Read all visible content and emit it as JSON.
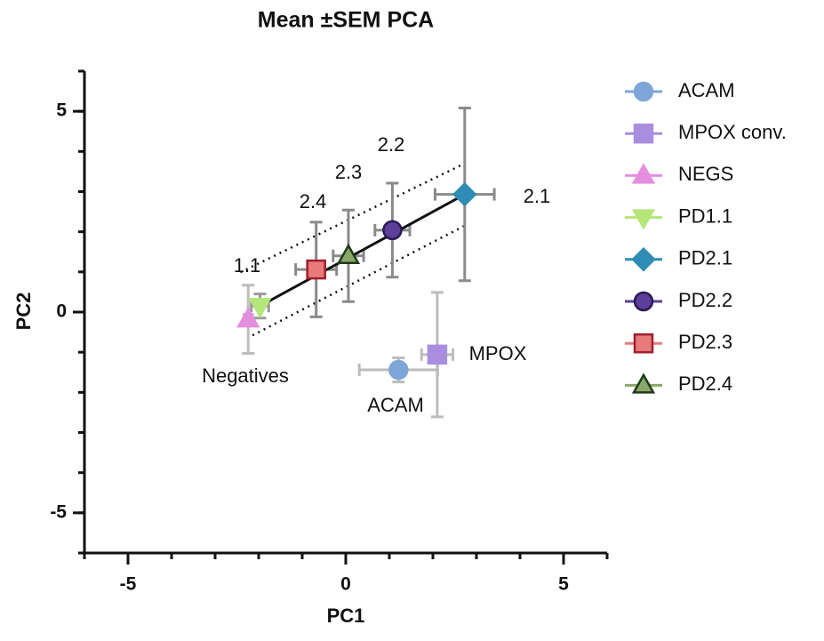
{
  "chart_data": {
    "type": "scatter",
    "title": "Mean ±SEM PCA",
    "x_label": "PC1",
    "y_label": "PC2",
    "xlim": [
      -6,
      6
    ],
    "ylim": [
      -6,
      6
    ],
    "xticks": [
      -5,
      0,
      5
    ],
    "yticks": [
      -5,
      0,
      5
    ],
    "xminor": [
      -6,
      -5,
      -4,
      -3,
      -2,
      -1,
      0,
      1,
      2,
      3,
      4,
      5,
      6
    ],
    "yminor": [
      -6,
      -5,
      -4,
      -3,
      -2,
      -1,
      0,
      1,
      2,
      3,
      4,
      5,
      6
    ],
    "legend": "right",
    "series": [
      {
        "name": "ACAM",
        "marker": "circle",
        "color": "#7fa6d8",
        "stroke": "#7fa6d8",
        "error_color": "#bdbdbd",
        "x": [
          1.21
        ],
        "values": [
          -1.44
        ],
        "xerr": [
          0.9
        ],
        "yerr": [
          0.3
        ]
      },
      {
        "name": "MPOX conv.",
        "marker": "square",
        "color": "#a98ee0",
        "stroke": "#a98ee0",
        "error_color": "#bdbdbd",
        "x": [
          2.1
        ],
        "values": [
          -1.06
        ],
        "xerr": [
          0.36
        ],
        "yerr": [
          1.55
        ]
      },
      {
        "name": "NEGS",
        "marker": "triangle",
        "color": "#e58ee0",
        "stroke": "#e58ee0",
        "error_color": "#bdbdbd",
        "x": [
          -2.24
        ],
        "values": [
          -0.18
        ],
        "xerr": [
          0.1
        ],
        "yerr": [
          0.85
        ]
      },
      {
        "name": "PD1.1",
        "marker": "triangle-down",
        "color": "#b5e67a",
        "stroke": "#b5e67a",
        "error_color": "#9a9a9a",
        "x": [
          -1.97
        ],
        "values": [
          0.15
        ],
        "xerr": [
          0.2
        ],
        "yerr": [
          0.3
        ]
      },
      {
        "name": "PD2.1",
        "marker": "diamond",
        "color": "#2f8db5",
        "stroke": "#2f8db5",
        "error_color": "#8a8a8a",
        "x": [
          2.73
        ],
        "values": [
          2.93
        ],
        "xerr": [
          0.68
        ],
        "yerr": [
          2.15
        ]
      },
      {
        "name": "PD2.2",
        "marker": "circle",
        "color": "#5b3f99",
        "stroke": "#2a1a55",
        "error_color": "#8a8a8a",
        "x": [
          1.07
        ],
        "values": [
          2.04
        ],
        "xerr": [
          0.4
        ],
        "yerr": [
          1.17
        ]
      },
      {
        "name": "PD2.3",
        "marker": "square",
        "color": "#e87a7a",
        "stroke": "#a01f2a",
        "error_color": "#8a8a8a",
        "x": [
          -0.68
        ],
        "values": [
          1.06
        ],
        "xerr": [
          0.47
        ],
        "yerr": [
          1.18
        ]
      },
      {
        "name": "PD2.4",
        "marker": "triangle",
        "color": "#8aa86a",
        "stroke": "#1f3a1a",
        "error_color": "#8a8a8a",
        "x": [
          0.06
        ],
        "values": [
          1.4
        ],
        "xerr": [
          0.35
        ],
        "yerr": [
          1.14
        ]
      }
    ],
    "fit": {
      "x": [
        -1.97,
        2.73
      ],
      "values": [
        0.15,
        2.93
      ]
    },
    "band_upper": {
      "x": [
        -2.42,
        2.73
      ],
      "values": [
        0.99,
        3.7
      ]
    },
    "band_lower": {
      "x": [
        -2.14,
        2.73
      ],
      "values": [
        -0.58,
        2.15
      ]
    },
    "annotations": [
      "2.1",
      "2.2",
      "2.3",
      "2.4",
      "1.1",
      "Negatives",
      "ACAM",
      "MPOX"
    ]
  }
}
